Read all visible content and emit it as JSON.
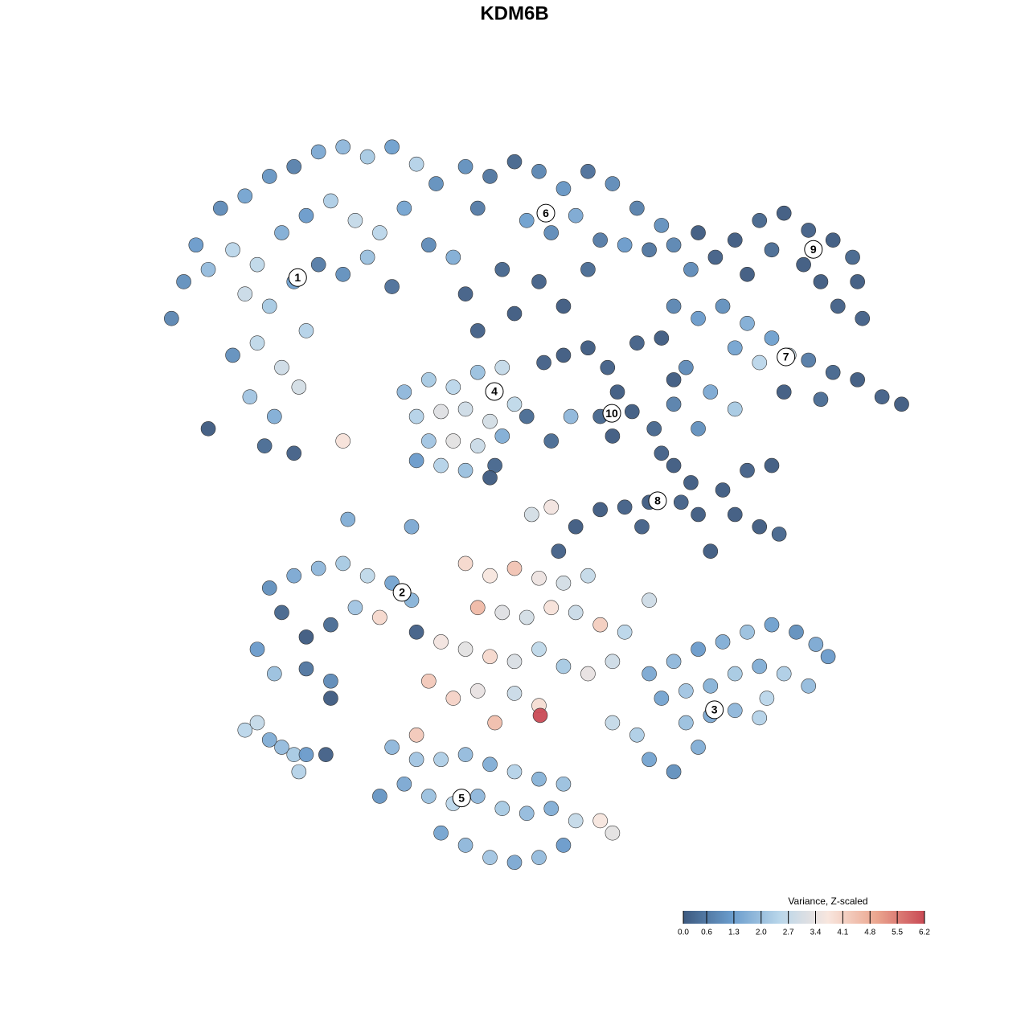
{
  "chart_data": {
    "type": "scatter",
    "title": "KDM6B",
    "xlim": [
      -21,
      21
    ],
    "ylim": [
      -21,
      21
    ],
    "x": [
      -13.5,
      -14,
      -13,
      -12,
      -11,
      -10,
      -9,
      -8,
      -7,
      -6,
      -5,
      -4,
      -3.2,
      -12.5,
      -11.5,
      -10.5,
      -9.5,
      -8.5,
      -7.5,
      -6.5,
      -5.5,
      -4.5,
      -3.5,
      -11,
      -10,
      -9,
      -8,
      -7,
      -6,
      -5,
      -10.5,
      -9.5,
      -8.5,
      -11.5,
      -10.8,
      -9.8,
      -8.8,
      -10.2,
      -9,
      -7,
      -2,
      -1,
      0,
      1,
      2,
      3,
      4,
      5,
      6,
      -1.5,
      0.5,
      1.5,
      2.5,
      3.5,
      4.5,
      5.5,
      6.5,
      -2.5,
      -0.5,
      1,
      2,
      3,
      7.2,
      -2,
      0,
      7.5,
      8.2,
      9,
      10,
      11,
      12,
      13,
      13.8,
      14,
      13.2,
      11.8,
      10.5,
      9.5,
      12.5,
      14.2,
      6.5,
      7.5,
      8.5,
      9.5,
      10.5,
      11.2,
      10,
      9,
      12,
      13,
      14,
      15,
      15.8,
      12.5,
      11,
      7,
      8,
      9,
      7.5,
      6.5,
      -4.5,
      -3.5,
      -2.5,
      -1.5,
      -0.5,
      -4,
      -3,
      -2,
      -1,
      0,
      -3.5,
      -2.5,
      -1.5,
      -0.5,
      -4,
      -3,
      -2,
      -0.8,
      0.5,
      -1.5,
      1.2,
      2,
      3,
      3.8,
      4.2,
      3.5,
      4.8,
      4,
      5,
      6,
      6.5,
      2.3,
      1.5,
      6,
      5.7,
      6.5,
      7.2,
      6.8,
      7.5,
      8.5,
      9.5,
      10.5,
      9,
      10,
      10.8,
      8,
      5.5,
      4.5,
      3.5,
      2.5,
      1.8,
      1.5,
      0.7,
      -10,
      -9,
      -8,
      -7,
      -6,
      -5,
      -4.2,
      -9.5,
      -8.5,
      -7.5,
      -10.5,
      -9.8,
      -8.5,
      -7.5,
      -6.5,
      -5.5,
      -4,
      -7.5,
      -2,
      -1,
      0,
      1,
      2,
      3,
      -1.5,
      -0.5,
      0.5,
      1.5,
      2.5,
      3.5,
      4.5,
      5.5,
      -3,
      -2,
      -1,
      0,
      1,
      2,
      3,
      4,
      -3.5,
      -2.5,
      -1.5,
      0,
      1,
      1.05,
      -0.8,
      -4,
      5.5,
      6.5,
      7.5,
      8.5,
      9.5,
      10.5,
      11.5,
      12.3,
      12.8,
      6,
      7,
      8,
      9,
      10,
      11,
      12,
      7,
      8,
      9,
      10,
      5,
      5.5,
      6.5,
      7.5,
      4,
      -5,
      -4,
      -3,
      -2,
      -1,
      0,
      1,
      2,
      -4.5,
      -3.5,
      -2.5,
      -1.5,
      -0.5,
      0.5,
      1.5,
      2.5,
      3.5,
      4,
      -3,
      -2,
      -1,
      0,
      1,
      2,
      -5.5,
      -11,
      -10.5,
      -10,
      -9.5,
      -9,
      -8.8,
      -8.5,
      -7.7,
      -6.8,
      -4.2,
      -1,
      -12.5,
      5.2,
      10.3
    ],
    "y": [
      9.5,
      8,
      11,
      12.5,
      13,
      13.8,
      14.2,
      14.8,
      15,
      14.6,
      15,
      14.3,
      13.5,
      10,
      10.8,
      10.2,
      11.5,
      12.2,
      12.8,
      12,
      11.5,
      12.5,
      11,
      9,
      8.5,
      9.5,
      10.2,
      9.8,
      10.5,
      9.3,
      7,
      6,
      7.5,
      6.5,
      4.8,
      4,
      5.2,
      2.8,
      2.5,
      3,
      14.2,
      13.8,
      14.4,
      14,
      13.3,
      14,
      13.5,
      12.5,
      11.8,
      12.5,
      12,
      11.5,
      12.2,
      11.2,
      11,
      10.8,
      11,
      10.5,
      10,
      9.5,
      8.5,
      10,
      10,
      9,
      8.2,
      11.5,
      10.5,
      11.2,
      12,
      12.3,
      11.6,
      11.2,
      10.5,
      9.5,
      8.5,
      10.2,
      10.8,
      9.8,
      9.5,
      8,
      8.5,
      8,
      8.5,
      7.8,
      7.2,
      6.5,
      6.2,
      6.8,
      6.3,
      5.8,
      5.5,
      4.8,
      4.5,
      4.7,
      5,
      6,
      5,
      4.3,
      3.5,
      4.5,
      5,
      5.5,
      5.2,
      5.8,
      6,
      4,
      4.2,
      4.3,
      3.8,
      4.5,
      3,
      3,
      2.8,
      3.2,
      2.2,
      2,
      1.8,
      2,
      4,
      7.5,
      6.2,
      6.5,
      6.8,
      6,
      5,
      4,
      4.2,
      3.2,
      7,
      7.2,
      5.5,
      4,
      3,
      2.5,
      3.5,
      2,
      1.3,
      0.5,
      0,
      1,
      1.8,
      2,
      0,
      -0.5,
      -0.8,
      -1.5,
      0.5,
      0.3,
      0.2,
      -0.5,
      -1.5,
      0.3,
      0,
      -3,
      -2.5,
      -2.2,
      -2,
      -2.5,
      -2.8,
      -3.5,
      -4,
      -5,
      -4.5,
      -5.5,
      -6.5,
      -6.3,
      -6.8,
      -3.8,
      -4.2,
      -4.8,
      -7.5,
      -2,
      -2.5,
      -2.2,
      -2.6,
      -2.8,
      -2.5,
      -3.8,
      -4,
      -4.2,
      -3.8,
      -4,
      -4.5,
      -4.8,
      -3.5,
      -5.2,
      -5.5,
      -5.8,
      -6,
      -5.5,
      -6.2,
      -6.5,
      -6,
      -6.8,
      -7.5,
      -7.2,
      -7.3,
      -7.8,
      -8.2,
      -8.5,
      -9,
      -6.5,
      -6,
      -5.5,
      -5.2,
      -4.8,
      -4.5,
      -4.8,
      -5.3,
      -5.8,
      -7.5,
      -7.2,
      -7,
      -6.5,
      -6.2,
      -6.5,
      -7,
      -8.5,
      -8.2,
      -8,
      -8.3,
      -9,
      -10,
      -10.5,
      -9.5,
      -8.5,
      -9.5,
      -10,
      -10,
      -9.8,
      -10.2,
      -10.5,
      -10.8,
      -11,
      -11,
      -11.5,
      -11.8,
      -11.5,
      -12,
      -12.2,
      -12,
      -12.5,
      -12.5,
      -13,
      -13,
      -13.5,
      -14,
      -14.2,
      -14,
      -13.5,
      -11.5,
      -8.8,
      -8.5,
      -9.2,
      -9.5,
      -9.8,
      -10.5,
      -9.8,
      -9.8,
      -0.2,
      -0.5,
      1.5,
      3.5,
      -0.5,
      -7.5
    ],
    "values": [
      1.0,
      0.8,
      1.2,
      0.9,
      1.4,
      1.1,
      0.7,
      1.5,
      1.8,
      2.2,
      1.3,
      2.4,
      1.0,
      1.9,
      2.5,
      2.6,
      1.6,
      1.2,
      2.3,
      2.7,
      2.5,
      1.4,
      0.9,
      2.8,
      2.2,
      1.3,
      0.6,
      1.0,
      2.0,
      0.4,
      2.6,
      2.9,
      2.4,
      1.0,
      2.1,
      1.6,
      3.0,
      0.3,
      0.1,
      3.8,
      1.0,
      0.5,
      0.2,
      0.8,
      1.1,
      0.4,
      0.9,
      0.7,
      1.0,
      0.6,
      1.3,
      0.9,
      1.5,
      0.6,
      1.2,
      0.5,
      0.8,
      1.6,
      0.2,
      0.1,
      0.0,
      0.3,
      0.9,
      0.1,
      0.0,
      0.0,
      0.1,
      0.0,
      0.2,
      0.0,
      0.1,
      0.0,
      0.2,
      0.0,
      0.1,
      0.0,
      0.3,
      0.0,
      0.0,
      0.1,
      0.8,
      1.2,
      1.0,
      1.6,
      1.3,
      2.8,
      2.5,
      1.4,
      0.6,
      0.2,
      0.0,
      0.1,
      0.0,
      0.3,
      0.0,
      0.9,
      1.5,
      2.2,
      1.0,
      0.7,
      1.8,
      2.2,
      2.5,
      2.0,
      2.7,
      2.4,
      3.2,
      2.9,
      3.0,
      2.6,
      2.1,
      3.3,
      2.8,
      1.6,
      1.2,
      2.4,
      2.0,
      0.2,
      0.3,
      0.1,
      0.1,
      0.0,
      0.0,
      0.1,
      0.0,
      0.2,
      0.0,
      0.0,
      0.1,
      0.0,
      0.0,
      1.8,
      0.3,
      0.1,
      0.2,
      0.0,
      0.0,
      0.1,
      0.0,
      0.0,
      0.1,
      0.0,
      0.0,
      0.0,
      0.2,
      0.0,
      0.0,
      0.1,
      0.0,
      0.0,
      0.1,
      3.6,
      3.0,
      1.0,
      1.5,
      1.8,
      2.2,
      2.6,
      1.4,
      1.7,
      0.2,
      0.0,
      0.3,
      1.2,
      2.0,
      0.5,
      0.9,
      2.1,
      4.0,
      0.1,
      0.0,
      4.0,
      3.7,
      4.4,
      3.5,
      3.0,
      2.7,
      4.6,
      3.2,
      3.0,
      3.8,
      2.8,
      4.2,
      2.5,
      2.9,
      3.6,
      3.3,
      4.0,
      3.1,
      2.6,
      2.2,
      3.4,
      2.9,
      4.3,
      4.1,
      3.4,
      2.8,
      3.9,
      6.2,
      4.5,
      4.3,
      1.5,
      1.8,
      1.2,
      1.6,
      2.0,
      1.3,
      1.0,
      1.5,
      1.2,
      1.4,
      2.1,
      1.7,
      2.2,
      1.6,
      2.3,
      1.9,
      2.0,
      1.5,
      1.8,
      2.4,
      2.3,
      1.4,
      1.0,
      1.6,
      2.7,
      1.8,
      2.1,
      2.3,
      1.9,
      1.6,
      2.4,
      1.7,
      2.0,
      1.5,
      2.0,
      2.5,
      1.8,
      2.2,
      1.9,
      1.6,
      2.7,
      3.7,
      3.3,
      1.4,
      1.8,
      2.1,
      1.5,
      1.9,
      1.2,
      1.1,
      2.5,
      2.7,
      1.6,
      1.9,
      2.2,
      2.4,
      1.2,
      0.1,
      1.6,
      1.5,
      0.0,
      0.0,
      0.1,
      2.5
    ],
    "cluster_labels": {
      "labels": [
        "1",
        "2",
        "3",
        "4",
        "5",
        "6",
        "7",
        "8",
        "9",
        "10"
      ],
      "x": [
        -8.85,
        -4.59,
        8.16,
        -0.82,
        -2.16,
        1.28,
        11.08,
        5.84,
        12.2,
        3.97
      ],
      "y": [
        9.67,
        -3.18,
        -7.97,
        5.02,
        -11.57,
        12.3,
        6.43,
        0.56,
        10.82,
        4.13
      ]
    },
    "colorbar": {
      "title": "Variance, Z-scaled",
      "lim": [
        0,
        6.2
      ],
      "ticks": [
        {
          "value": 0,
          "label": "0.0"
        },
        0.6,
        1.3,
        {
          "value": 2,
          "label": "2.0"
        },
        2.7,
        3.4,
        4.1,
        4.8,
        5.5,
        6.2
      ],
      "colors": [
        "#3d5a80",
        "#6a9ccc",
        "#b9d6ea",
        "#f8e6de",
        "#eba68f",
        "#c94a55"
      ]
    }
  }
}
